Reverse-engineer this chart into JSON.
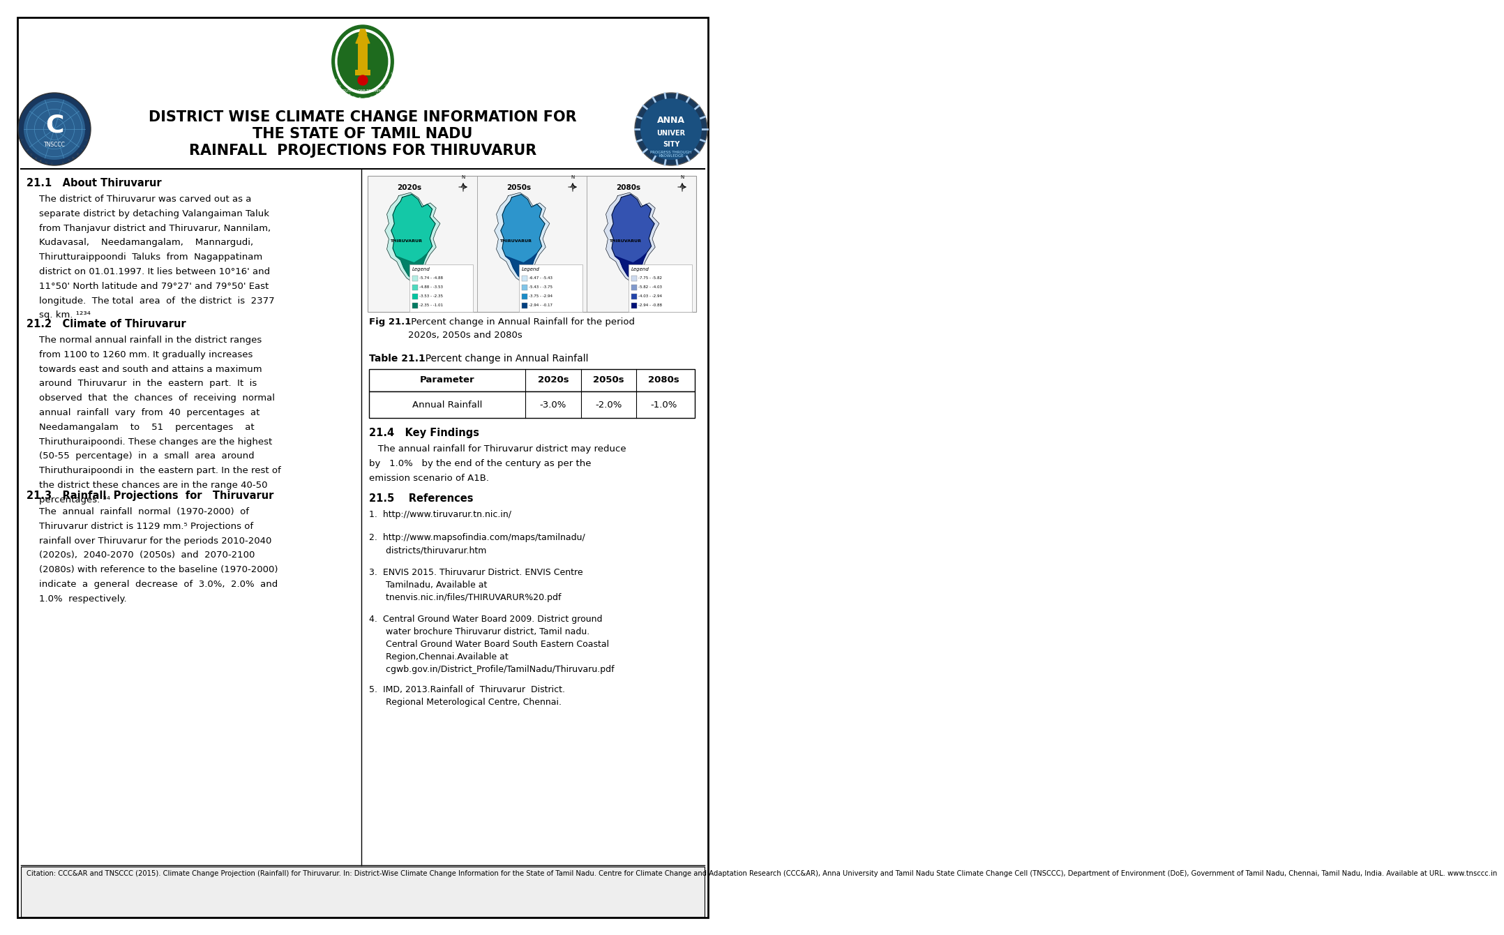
{
  "title_line1": "DISTRICT WISE CLIMATE CHANGE INFORMATION FOR",
  "title_line2": "THE STATE OF TAMIL NADU",
  "title_line3": "RAINFALL  PROJECTIONS FOR THIRUVARUR",
  "section_21_1_heading": "21.1   About Thiruvarur",
  "section_21_1_body": "The district of Thiruvarur was carved out as a\nseparate district by detaching Valangaiman Taluk\nfrom Thanjavur district and Thiruvarur, Nannilam,\nKudavasal,    Needamangalam,    Mannargudi,\nThirutturaippoondi  Taluks  from  Nagappatinam\ndistrict on 01.01.1997. It lies between 10°16' and\n11°50' North latitude and 79°27' and 79°50' East\nlongitude.  The total  area  of  the district  is  2377\nsq. km. ¹²³⁴",
  "section_21_2_heading": "21.2   Climate of Thiruvarur",
  "section_21_2_body": "The normal annual rainfall in the district ranges\nfrom 1100 to 1260 mm. It gradually increases\ntowards east and south and attains a maximum\naround  Thiruvarur  in  the  eastern  part.  It  is\nobserved  that  the  chances  of  receiving  normal\nannual  rainfall  vary  from  40  percentages  at\nNeedamangalam    to    51    percentages    at\nThiruthuraipoondi. These changes are the highest\n(50-55  percentage)  in  a  small  area  around\nThiruthuraipoondi in  the eastern part. In the rest of\nthe district these chances are in the range 40-50\npercentages. ³⁴",
  "section_21_3_heading": "21.3   Rainfall  Projections  for   Thiruvarur",
  "section_21_3_body": "The  annual  rainfall  normal  (1970-2000)  of\nThiruvarur district is 1129 mm.⁵ Projections of\nrainfall over Thiruvarur for the periods 2010-2040\n(2020s),  2040-2070  (2050s)  and  2070-2100\n(2080s) with reference to the baseline (1970-2000)\nindicate  a  general  decrease  of  3.0%,  2.0%  and\n1.0%  respectively.",
  "fig_caption_bold": "Fig 21.1",
  "fig_caption_rest": " Percent change in Annual Rainfall for the period\n2020s, 2050s and 2080s",
  "table_heading_bold": "Table 21.1",
  "table_heading_rest": "  Percent change in Annual Rainfall",
  "table_headers": [
    "Parameter",
    "2020s",
    "2050s",
    "2080s"
  ],
  "table_row": [
    "Annual Rainfall",
    "-3.0%",
    "-2.0%",
    "-1.0%"
  ],
  "kf_heading": "21.4   Key Findings",
  "kf_body": "   The annual rainfall for Thiruvarur district may reduce\nby   1.0%   by the end of the century as per the\nemission scenario of A1B.",
  "ref_heading": "21.5    References",
  "references": [
    "http://www.tiruvarur.tn.nic.in/",
    "http://www.mapsofindia.com/maps/tamilnadu/\n      districts/thiruvarur.htm",
    "ENVIS 2015. Thiruvarur District. ENVIS Centre\n      Tamilnadu, Available at\n      tnenvis.nic.in/files/THIRUVARUR%20.pdf",
    "Central Ground Water Board 2009. District ground\n      water brochure Thiruvarur district, Tamil nadu.\n      Central Ground Water Board South Eastern Coastal\n      Region,Chennai.Available at\n      cgwb.gov.in/District_Profile/TamilNadu/Thiruvaru.pdf",
    "IMD, 2013.Rainfall of  Thiruvarur  District.\n      Regional Meterological Centre, Chennai."
  ],
  "citation": "Citation: CCC&AR and TNSCCC (2015). Climate Change Projection (Rainfall) for Thiruvarur. In: District-Wise Climate Change Information for the State of Tamil Nadu. Centre for Climate Change and Adaptation Research (CCC&AR), Anna University and Tamil Nadu State Climate Change Cell (TNSCCC), Department of Environment (DoE), Government of Tamil Nadu, Chennai, Tamil Nadu, India. Available at URL. www.tnsccc.in",
  "map_labels": [
    "2020s",
    "2050s",
    "2080s"
  ],
  "map_colors": [
    [
      "#b2ede3",
      "#4dd9be",
      "#00c4a0",
      "#007a62"
    ],
    [
      "#cce5f5",
      "#80c4e8",
      "#1a8cc8",
      "#004080"
    ],
    [
      "#ccd9ee",
      "#8099cc",
      "#2244aa",
      "#001177"
    ]
  ],
  "map_legends": [
    [
      "-5.74 - -4.88",
      "-4.88 - -3.53",
      "-3.53 - -2.35",
      "-2.35 - -1.01"
    ],
    [
      "-6.47 - -5.43",
      "-5.43 - -3.75",
      "-3.75 - -2.94",
      "-2.94 - -0.17"
    ],
    [
      "-7.75 - -5.82",
      "-5.82 - -4.03",
      "-4.03 - -2.94",
      "-2.94 - -0.88"
    ]
  ]
}
